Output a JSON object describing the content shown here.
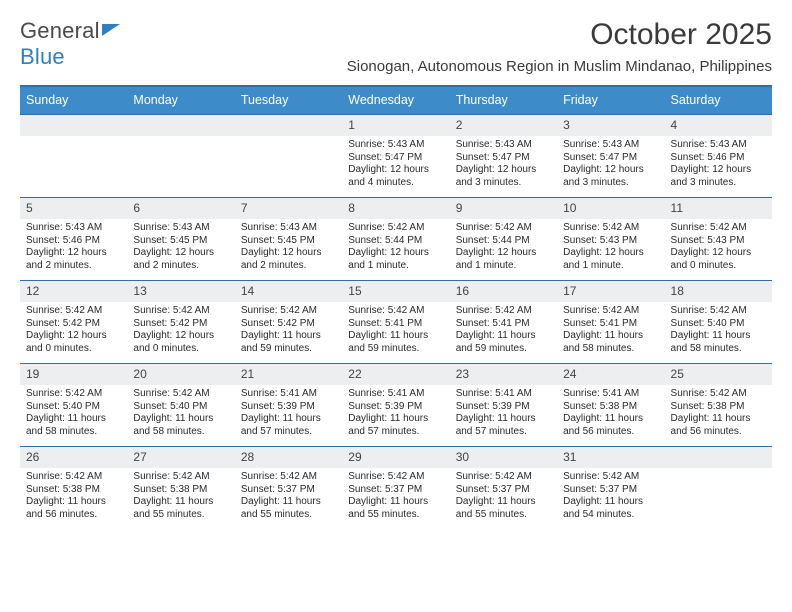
{
  "brand": {
    "part1": "General",
    "part2": "Blue"
  },
  "title": "October 2025",
  "subtitle": "Sionogan, Autonomous Region in Muslim Mindanao, Philippines",
  "colors": {
    "header_bg": "#3d8bc8",
    "header_border": "#2f6fa9",
    "daynum_bg": "#eceeef",
    "text": "#2a2a2a",
    "accent": "#2f7fc1"
  },
  "typography": {
    "title_fontsize": 30,
    "subtitle_fontsize": 15,
    "head_fontsize": 12.5,
    "body_fontsize": 10
  },
  "weekdays": [
    "Sunday",
    "Monday",
    "Tuesday",
    "Wednesday",
    "Thursday",
    "Friday",
    "Saturday"
  ],
  "weeks": [
    [
      null,
      null,
      null,
      {
        "n": "1",
        "sunrise": "5:43 AM",
        "sunset": "5:47 PM",
        "daylight": "12 hours and 4 minutes."
      },
      {
        "n": "2",
        "sunrise": "5:43 AM",
        "sunset": "5:47 PM",
        "daylight": "12 hours and 3 minutes."
      },
      {
        "n": "3",
        "sunrise": "5:43 AM",
        "sunset": "5:47 PM",
        "daylight": "12 hours and 3 minutes."
      },
      {
        "n": "4",
        "sunrise": "5:43 AM",
        "sunset": "5:46 PM",
        "daylight": "12 hours and 3 minutes."
      }
    ],
    [
      {
        "n": "5",
        "sunrise": "5:43 AM",
        "sunset": "5:46 PM",
        "daylight": "12 hours and 2 minutes."
      },
      {
        "n": "6",
        "sunrise": "5:43 AM",
        "sunset": "5:45 PM",
        "daylight": "12 hours and 2 minutes."
      },
      {
        "n": "7",
        "sunrise": "5:43 AM",
        "sunset": "5:45 PM",
        "daylight": "12 hours and 2 minutes."
      },
      {
        "n": "8",
        "sunrise": "5:42 AM",
        "sunset": "5:44 PM",
        "daylight": "12 hours and 1 minute."
      },
      {
        "n": "9",
        "sunrise": "5:42 AM",
        "sunset": "5:44 PM",
        "daylight": "12 hours and 1 minute."
      },
      {
        "n": "10",
        "sunrise": "5:42 AM",
        "sunset": "5:43 PM",
        "daylight": "12 hours and 1 minute."
      },
      {
        "n": "11",
        "sunrise": "5:42 AM",
        "sunset": "5:43 PM",
        "daylight": "12 hours and 0 minutes."
      }
    ],
    [
      {
        "n": "12",
        "sunrise": "5:42 AM",
        "sunset": "5:42 PM",
        "daylight": "12 hours and 0 minutes."
      },
      {
        "n": "13",
        "sunrise": "5:42 AM",
        "sunset": "5:42 PM",
        "daylight": "12 hours and 0 minutes."
      },
      {
        "n": "14",
        "sunrise": "5:42 AM",
        "sunset": "5:42 PM",
        "daylight": "11 hours and 59 minutes."
      },
      {
        "n": "15",
        "sunrise": "5:42 AM",
        "sunset": "5:41 PM",
        "daylight": "11 hours and 59 minutes."
      },
      {
        "n": "16",
        "sunrise": "5:42 AM",
        "sunset": "5:41 PM",
        "daylight": "11 hours and 59 minutes."
      },
      {
        "n": "17",
        "sunrise": "5:42 AM",
        "sunset": "5:41 PM",
        "daylight": "11 hours and 58 minutes."
      },
      {
        "n": "18",
        "sunrise": "5:42 AM",
        "sunset": "5:40 PM",
        "daylight": "11 hours and 58 minutes."
      }
    ],
    [
      {
        "n": "19",
        "sunrise": "5:42 AM",
        "sunset": "5:40 PM",
        "daylight": "11 hours and 58 minutes."
      },
      {
        "n": "20",
        "sunrise": "5:42 AM",
        "sunset": "5:40 PM",
        "daylight": "11 hours and 58 minutes."
      },
      {
        "n": "21",
        "sunrise": "5:41 AM",
        "sunset": "5:39 PM",
        "daylight": "11 hours and 57 minutes."
      },
      {
        "n": "22",
        "sunrise": "5:41 AM",
        "sunset": "5:39 PM",
        "daylight": "11 hours and 57 minutes."
      },
      {
        "n": "23",
        "sunrise": "5:41 AM",
        "sunset": "5:39 PM",
        "daylight": "11 hours and 57 minutes."
      },
      {
        "n": "24",
        "sunrise": "5:41 AM",
        "sunset": "5:38 PM",
        "daylight": "11 hours and 56 minutes."
      },
      {
        "n": "25",
        "sunrise": "5:42 AM",
        "sunset": "5:38 PM",
        "daylight": "11 hours and 56 minutes."
      }
    ],
    [
      {
        "n": "26",
        "sunrise": "5:42 AM",
        "sunset": "5:38 PM",
        "daylight": "11 hours and 56 minutes."
      },
      {
        "n": "27",
        "sunrise": "5:42 AM",
        "sunset": "5:38 PM",
        "daylight": "11 hours and 55 minutes."
      },
      {
        "n": "28",
        "sunrise": "5:42 AM",
        "sunset": "5:37 PM",
        "daylight": "11 hours and 55 minutes."
      },
      {
        "n": "29",
        "sunrise": "5:42 AM",
        "sunset": "5:37 PM",
        "daylight": "11 hours and 55 minutes."
      },
      {
        "n": "30",
        "sunrise": "5:42 AM",
        "sunset": "5:37 PM",
        "daylight": "11 hours and 55 minutes."
      },
      {
        "n": "31",
        "sunrise": "5:42 AM",
        "sunset": "5:37 PM",
        "daylight": "11 hours and 54 minutes."
      },
      null
    ]
  ],
  "labels": {
    "sunrise": "Sunrise:",
    "sunset": "Sunset:",
    "daylight": "Daylight:"
  }
}
